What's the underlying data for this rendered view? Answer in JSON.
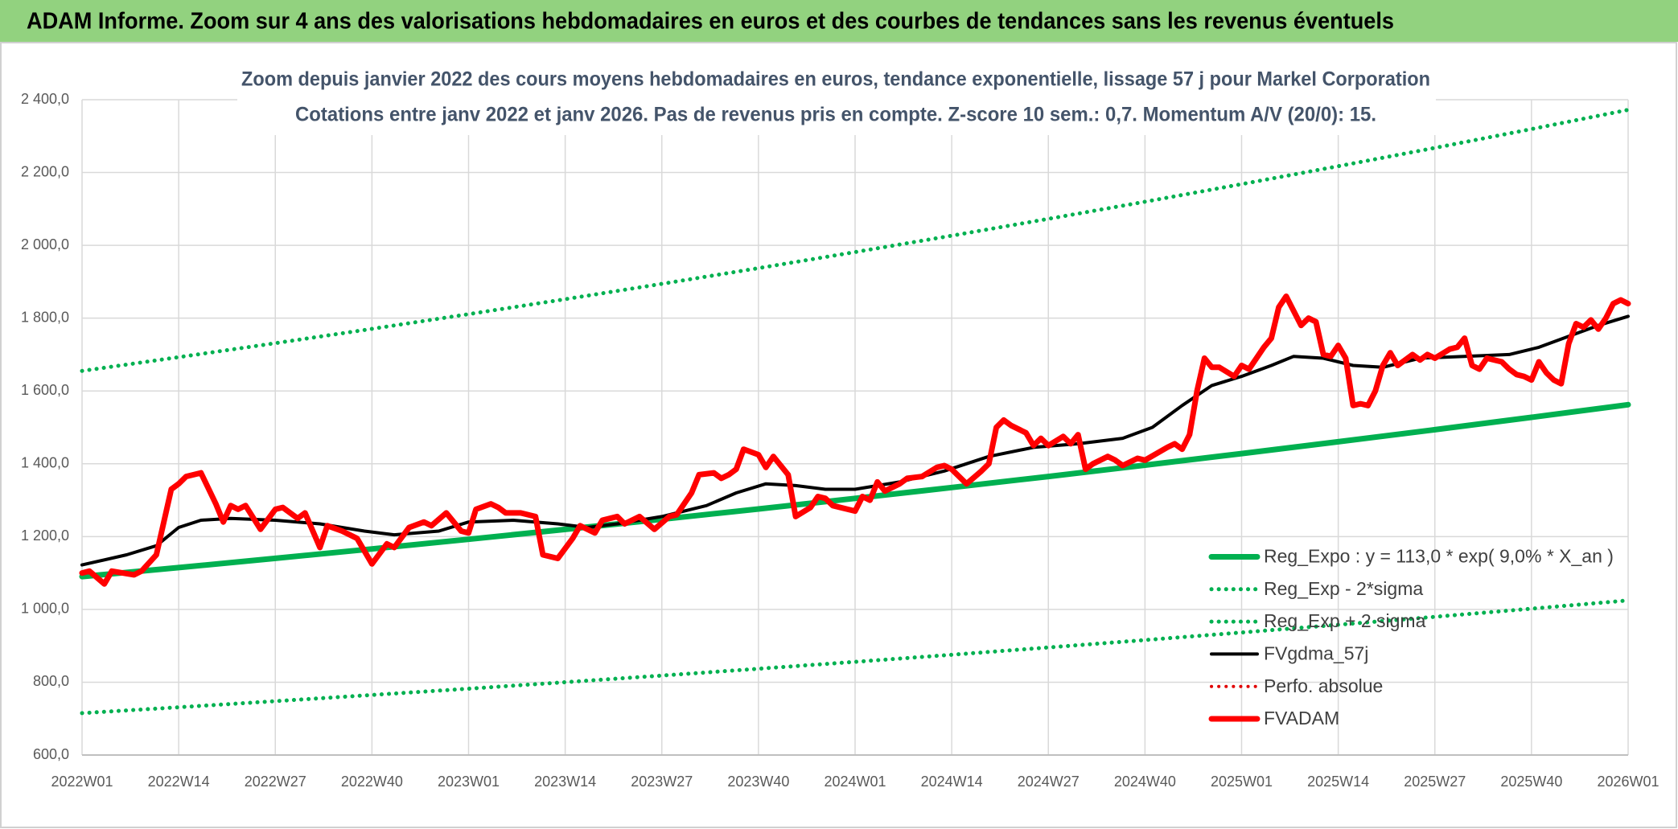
{
  "header": {
    "title": "ADAM Informe. Zoom sur 4 ans des valorisations hebdomadaires en euros et des courbes de tendances sans les revenus éventuels"
  },
  "chart_data": {
    "type": "line",
    "title": "Zoom depuis janvier 2022 des cours moyens hebdomadaires en euros, tendance exponentielle, lissage 57 j pour Markel Corporation",
    "subtitle": "Cotations entre janv 2022 et janv 2026. Pas de revenus pris en compte. Z-score 10 sem.: 0,7. Momentum A/V (20/0): 15.",
    "xlim": [
      0,
      208
    ],
    "xticks": [
      {
        "value": 0,
        "label": "2022W01"
      },
      {
        "value": 13,
        "label": "2022W14"
      },
      {
        "value": 26,
        "label": "2022W27"
      },
      {
        "value": 39,
        "label": "2022W40"
      },
      {
        "value": 52,
        "label": "2023W01"
      },
      {
        "value": 65,
        "label": "2023W14"
      },
      {
        "value": 78,
        "label": "2023W27"
      },
      {
        "value": 91,
        "label": "2023W40"
      },
      {
        "value": 104,
        "label": "2024W01"
      },
      {
        "value": 117,
        "label": "2024W14"
      },
      {
        "value": 130,
        "label": "2024W27"
      },
      {
        "value": 143,
        "label": "2024W40"
      },
      {
        "value": 156,
        "label": "2025W01"
      },
      {
        "value": 169,
        "label": "2025W14"
      },
      {
        "value": 182,
        "label": "2025W27"
      },
      {
        "value": 195,
        "label": "2025W40"
      },
      {
        "value": 208,
        "label": "2026W01"
      }
    ],
    "ylim": [
      600,
      2400
    ],
    "yticks": [
      {
        "value": 600,
        "label": "600,0"
      },
      {
        "value": 800,
        "label": "800,0"
      },
      {
        "value": 1000,
        "label": "1 000,0"
      },
      {
        "value": 1200,
        "label": "1 200,0"
      },
      {
        "value": 1400,
        "label": "1 400,0"
      },
      {
        "value": 1600,
        "label": "1 600,0"
      },
      {
        "value": 1800,
        "label": "1 800,0"
      },
      {
        "value": 2000,
        "label": "2 000,0"
      },
      {
        "value": 2200,
        "label": "2 200,0"
      },
      {
        "value": 2400,
        "label": "2 400,0"
      }
    ],
    "grid": true,
    "legend": "lower right",
    "series": [
      {
        "name": "Reg_Expo : y = 113,0 * exp( 9,0% *  X_an )",
        "color": "#00b050",
        "style": "solid",
        "x": [
          0,
          13,
          26,
          39,
          52,
          65,
          78,
          91,
          104,
          117,
          130,
          143,
          156,
          169,
          182,
          195,
          208
        ],
        "values": [
          1090,
          1114.8,
          1140.2,
          1166.1,
          1192.6,
          1219.8,
          1247.5,
          1275.9,
          1305.0,
          1334.7,
          1365.0,
          1396.1,
          1427.9,
          1460.4,
          1493.6,
          1527.6,
          1562.3
        ]
      },
      {
        "name": "Reg_Exp - 2*sigma",
        "color": "#00b050",
        "style": "dotted",
        "x": [
          0,
          13,
          26,
          39,
          52,
          65,
          78,
          91,
          104,
          117,
          130,
          143,
          156,
          169,
          182,
          195,
          208
        ],
        "values": [
          715,
          731.3,
          747.9,
          764.9,
          782.3,
          800.1,
          818.3,
          837.0,
          856.0,
          875.5,
          895.4,
          915.8,
          936.6,
          957.9,
          979.7,
          1002.0,
          1024.8
        ]
      },
      {
        "name": "Reg_Exp + 2 sigma",
        "color": "#00b050",
        "style": "dotted",
        "x": [
          0,
          13,
          26,
          39,
          52,
          65,
          78,
          91,
          104,
          117,
          130,
          143,
          156,
          169,
          182,
          195,
          208
        ],
        "values": [
          1655,
          1692.7,
          1731.2,
          1770.6,
          1810.9,
          1852.1,
          1894.2,
          1937.3,
          1981.4,
          2026.5,
          2072.6,
          2119.7,
          2168.0,
          2217.3,
          2267.8,
          2319.4,
          2372.2
        ]
      },
      {
        "name": "FVgdma_57j",
        "color": "#000000",
        "style": "solid",
        "x": [
          0,
          6,
          10,
          13,
          16,
          20,
          26,
          32,
          38,
          42,
          48,
          52,
          58,
          64,
          68,
          72,
          78,
          84,
          88,
          92,
          96,
          100,
          104,
          110,
          116,
          122,
          128,
          134,
          140,
          144,
          148,
          152,
          156,
          160,
          163,
          167,
          171,
          175,
          180,
          186,
          192,
          196,
          200,
          204,
          208
        ],
        "values": [
          1122,
          1150,
          1175,
          1225,
          1245,
          1250,
          1245,
          1235,
          1215,
          1205,
          1215,
          1240,
          1245,
          1235,
          1225,
          1235,
          1255,
          1285,
          1320,
          1345,
          1340,
          1330,
          1330,
          1350,
          1380,
          1420,
          1445,
          1455,
          1470,
          1500,
          1560,
          1615,
          1640,
          1670,
          1695,
          1690,
          1670,
          1665,
          1690,
          1695,
          1700,
          1720,
          1750,
          1780,
          1805
        ]
      },
      {
        "name": "Perfo. absolue",
        "color": "#e00000",
        "style": "dotted",
        "x": [],
        "values": []
      },
      {
        "name": "FVADAM",
        "color": "#ff0000",
        "style": "solid",
        "x": [
          0,
          1,
          3,
          4,
          7,
          8,
          10,
          12,
          13,
          14,
          16,
          18,
          19,
          20,
          21,
          22,
          24,
          26,
          27,
          29,
          30,
          32,
          33,
          35,
          37,
          39,
          41,
          42,
          44,
          46,
          47,
          49,
          51,
          52,
          53,
          55,
          56,
          57,
          59,
          61,
          62,
          64,
          66,
          67,
          69,
          70,
          72,
          73,
          75,
          77,
          79,
          80,
          82,
          83,
          85,
          86,
          87,
          88,
          89,
          91,
          92,
          93,
          95,
          96,
          98,
          99,
          100,
          101,
          103,
          104,
          105,
          106,
          107,
          108,
          110,
          111,
          113,
          115,
          116,
          117,
          119,
          121,
          122,
          123,
          124,
          125,
          127,
          128,
          129,
          130,
          132,
          133,
          134,
          135,
          136,
          138,
          139,
          140,
          142,
          143,
          146,
          147,
          148,
          149,
          150,
          151,
          152,
          153,
          155,
          156,
          157,
          159,
          160,
          161,
          162,
          164,
          165,
          166,
          167,
          168,
          169,
          170,
          171,
          172,
          173,
          174,
          175,
          176,
          177,
          178,
          179,
          180,
          181,
          182,
          184,
          185,
          186,
          187,
          188,
          189,
          191,
          192,
          193,
          194,
          195,
          196,
          197,
          198,
          199,
          200,
          201,
          202,
          203,
          204,
          205,
          206,
          207,
          208
        ],
        "values": [
          1100,
          1105,
          1070,
          1105,
          1095,
          1105,
          1150,
          1330,
          1345,
          1365,
          1375,
          1290,
          1240,
          1285,
          1275,
          1285,
          1220,
          1275,
          1280,
          1250,
          1265,
          1170,
          1230,
          1215,
          1195,
          1125,
          1180,
          1170,
          1225,
          1240,
          1230,
          1265,
          1215,
          1210,
          1275,
          1290,
          1280,
          1265,
          1265,
          1255,
          1150,
          1140,
          1195,
          1230,
          1210,
          1245,
          1255,
          1235,
          1255,
          1220,
          1255,
          1260,
          1320,
          1370,
          1375,
          1360,
          1370,
          1385,
          1440,
          1425,
          1390,
          1420,
          1370,
          1255,
          1280,
          1310,
          1305,
          1285,
          1275,
          1270,
          1310,
          1300,
          1350,
          1325,
          1345,
          1360,
          1365,
          1390,
          1395,
          1385,
          1345,
          1380,
          1400,
          1500,
          1520,
          1505,
          1485,
          1450,
          1470,
          1450,
          1475,
          1455,
          1480,
          1385,
          1400,
          1420,
          1410,
          1395,
          1415,
          1410,
          1445,
          1455,
          1440,
          1480,
          1600,
          1690,
          1665,
          1665,
          1640,
          1670,
          1660,
          1720,
          1745,
          1830,
          1860,
          1780,
          1800,
          1790,
          1700,
          1695,
          1725,
          1690,
          1560,
          1565,
          1560,
          1600,
          1670,
          1705,
          1670,
          1685,
          1700,
          1685,
          1700,
          1690,
          1715,
          1720,
          1745,
          1670,
          1660,
          1690,
          1680,
          1660,
          1645,
          1640,
          1630,
          1680,
          1650,
          1630,
          1620,
          1730,
          1785,
          1775,
          1795,
          1770,
          1800,
          1840,
          1850,
          1840
        ]
      }
    ]
  }
}
